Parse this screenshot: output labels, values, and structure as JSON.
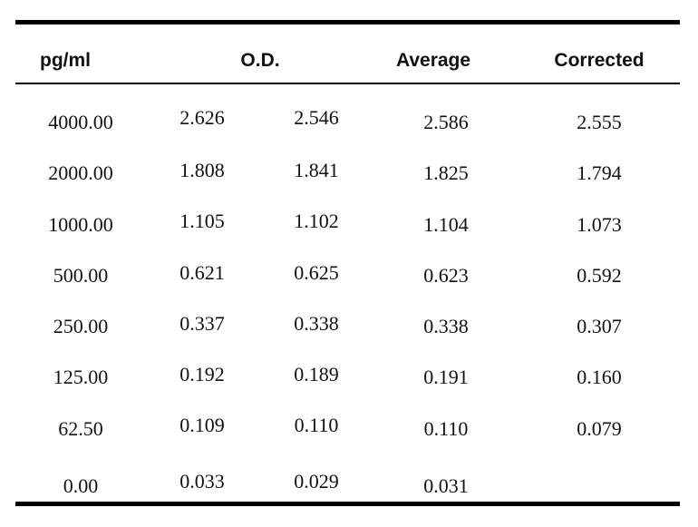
{
  "headers": {
    "conc": "pg/ml",
    "od": "O.D.",
    "average": "Average",
    "corrected": "Corrected"
  },
  "rows": [
    {
      "conc": "4000.00",
      "od1": "2.626",
      "od2": "2.546",
      "average": "2.586",
      "corrected": "2.555"
    },
    {
      "conc": "2000.00",
      "od1": "1.808",
      "od2": "1.841",
      "average": "1.825",
      "corrected": "1.794"
    },
    {
      "conc": "1000.00",
      "od1": "1.105",
      "od2": "1.102",
      "average": "1.104",
      "corrected": "1.073"
    },
    {
      "conc": "500.00",
      "od1": "0.621",
      "od2": "0.625",
      "average": "0.623",
      "corrected": "0.592"
    },
    {
      "conc": "250.00",
      "od1": "0.337",
      "od2": "0.338",
      "average": "0.338",
      "corrected": "0.307"
    },
    {
      "conc": "125.00",
      "od1": "0.192",
      "od2": "0.189",
      "average": "0.191",
      "corrected": "0.160"
    },
    {
      "conc": "62.50",
      "od1": "0.109",
      "od2": "0.110",
      "average": "0.110",
      "corrected": "0.079"
    },
    {
      "conc": "0.00",
      "od1": "0.033",
      "od2": "0.029",
      "average": "0.031",
      "corrected": ""
    }
  ]
}
